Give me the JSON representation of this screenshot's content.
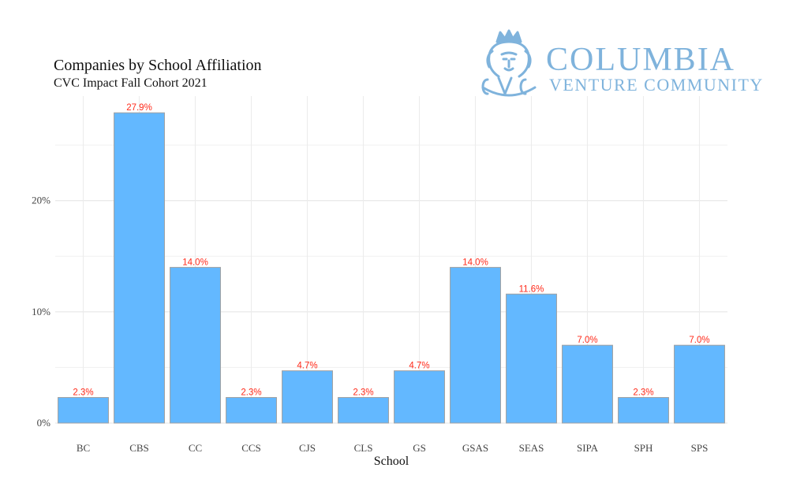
{
  "chart_data": {
    "type": "bar",
    "title": "Companies by School Affiliation",
    "subtitle": "CVC Impact Fall Cohort 2021",
    "xlabel": "School",
    "ylabel": "",
    "categories": [
      "BC",
      "CBS",
      "CC",
      "CCS",
      "CJS",
      "CLS",
      "GS",
      "GSAS",
      "SEAS",
      "SIPA",
      "SPH",
      "SPS"
    ],
    "values": [
      2.3,
      27.9,
      14.0,
      2.3,
      4.7,
      2.3,
      4.7,
      14.0,
      11.6,
      7.0,
      2.3,
      7.0
    ],
    "value_labels": [
      "2.3%",
      "27.9%",
      "14.0%",
      "2.3%",
      "4.7%",
      "2.3%",
      "4.7%",
      "14.0%",
      "11.6%",
      "7.0%",
      "2.3%",
      "7.0%"
    ],
    "y_ticks": [
      0,
      10,
      20
    ],
    "y_tick_labels": [
      "0%",
      "10%",
      "20%"
    ],
    "ylim": [
      0,
      29.4
    ],
    "grid": true,
    "bar_color": "#63b8ff",
    "bar_border_color": "#a0a0a0",
    "label_color": "#ff2a1a"
  },
  "logo": {
    "line1": "COLUMBIA",
    "line2": "VENTURE COMMUNITY",
    "color": "#7fb3dc"
  }
}
